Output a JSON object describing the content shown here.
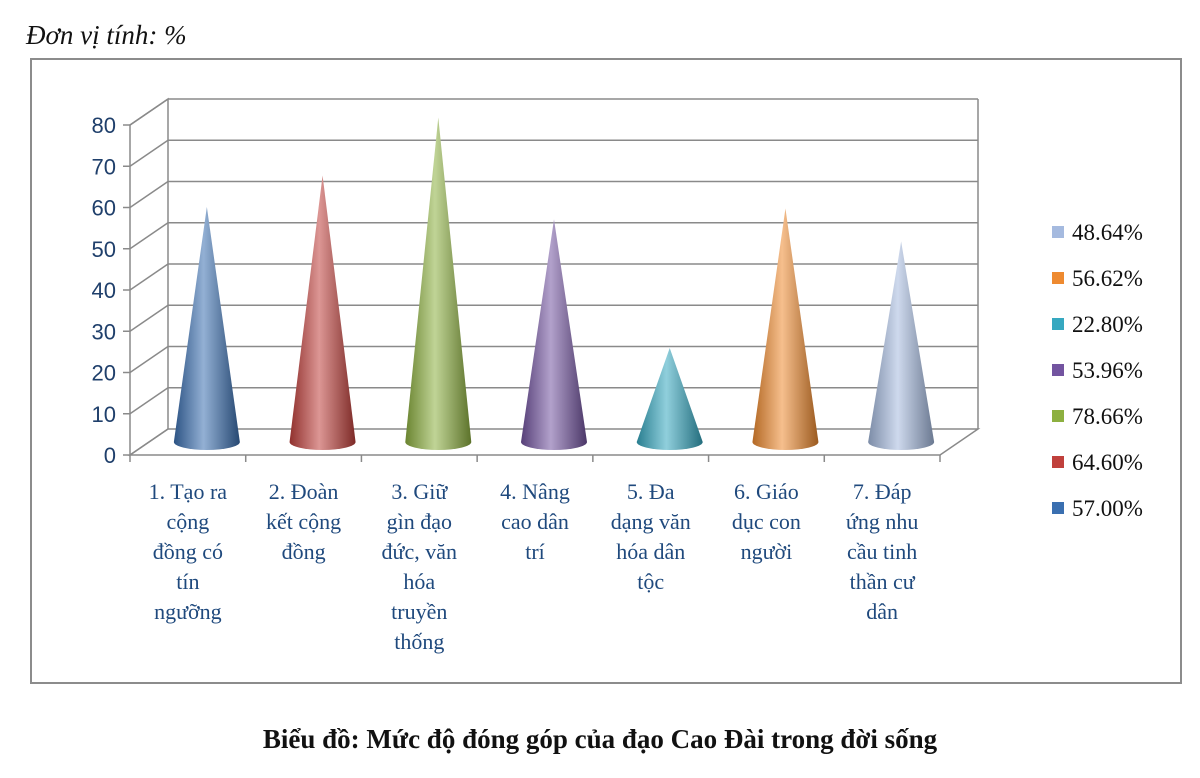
{
  "unit_label": "Đơn vị tính: %",
  "caption": "Biểu đồ: Mức độ đóng góp của đạo Cao Đài trong đời sống",
  "chart_data": {
    "type": "bar",
    "shape": "cone-3d",
    "categories": [
      [
        "1. Tạo ra",
        "cộng",
        "đồng có",
        "tín",
        "ngưỡng"
      ],
      [
        "2. Đoàn",
        "kết cộng",
        "đồng"
      ],
      [
        "3. Giữ",
        "gìn đạo",
        "đức, văn",
        "hóa",
        "truyền",
        "thống"
      ],
      [
        "4. Nâng",
        "cao dân",
        "trí"
      ],
      [
        "5. Đa",
        "dạng văn",
        "hóa dân",
        "tộc"
      ],
      [
        "6. Giáo",
        "dục con",
        "người"
      ],
      [
        "7. Đáp",
        "ứng nhu",
        "cầu tinh",
        "thần cư",
        "dân"
      ]
    ],
    "values": [
      57.0,
      64.6,
      78.66,
      53.96,
      22.8,
      56.62,
      48.64
    ],
    "colors": [
      "#3a6fb0",
      "#c0403c",
      "#8db040",
      "#7354a0",
      "#36a8c0",
      "#ee8a30",
      "#a5badf"
    ],
    "yticks": [
      "0",
      "10",
      "20",
      "30",
      "40",
      "50",
      "60",
      "70",
      "80"
    ],
    "ylim": [
      0,
      80
    ],
    "grid": true,
    "legend_position": "right",
    "legend": [
      {
        "label": "48.64%",
        "color": "#a5badf"
      },
      {
        "label": "56.62%",
        "color": "#ee8a30"
      },
      {
        "label": "22.80%",
        "color": "#36a8c0"
      },
      {
        "label": "53.96%",
        "color": "#7354a0"
      },
      {
        "label": "78.66%",
        "color": "#8db040"
      },
      {
        "label": "64.60%",
        "color": "#c0403c"
      },
      {
        "label": "57.00%",
        "color": "#3a6fb0"
      }
    ]
  }
}
